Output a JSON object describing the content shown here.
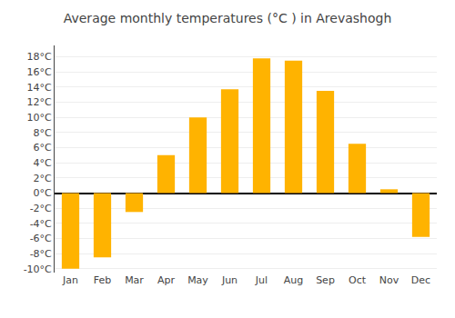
{
  "chart_data": {
    "type": "bar",
    "title": "Average monthly temperatures (°C ) in Arevashogh",
    "categories": [
      "Jan",
      "Feb",
      "Mar",
      "Apr",
      "May",
      "Jun",
      "Jul",
      "Aug",
      "Sep",
      "Oct",
      "Nov",
      "Dec"
    ],
    "values": [
      -10,
      -8.5,
      -2.5,
      5,
      10,
      13.7,
      17.8,
      17.5,
      13.5,
      6.5,
      0.5,
      -5.8
    ],
    "color": "#FFB300",
    "ylim": [
      -10.5,
      19.5
    ],
    "yticks": [
      {
        "value": -10,
        "label": "-10°C"
      },
      {
        "value": -8,
        "label": "-8°C"
      },
      {
        "value": -6,
        "label": "-6°C"
      },
      {
        "value": -4,
        "label": "-4°C"
      },
      {
        "value": -2,
        "label": "-2°C"
      },
      {
        "value": 0,
        "label": "0°C"
      },
      {
        "value": 2,
        "label": "2°C"
      },
      {
        "value": 4,
        "label": "4°C"
      },
      {
        "value": 6,
        "label": "6°C"
      },
      {
        "value": 8,
        "label": "8°C"
      },
      {
        "value": 10,
        "label": "10°C"
      },
      {
        "value": 12,
        "label": "12°C"
      },
      {
        "value": 14,
        "label": "14°C"
      },
      {
        "value": 16,
        "label": "16°C"
      },
      {
        "value": 18,
        "label": "18°C"
      }
    ],
    "grid": true
  }
}
